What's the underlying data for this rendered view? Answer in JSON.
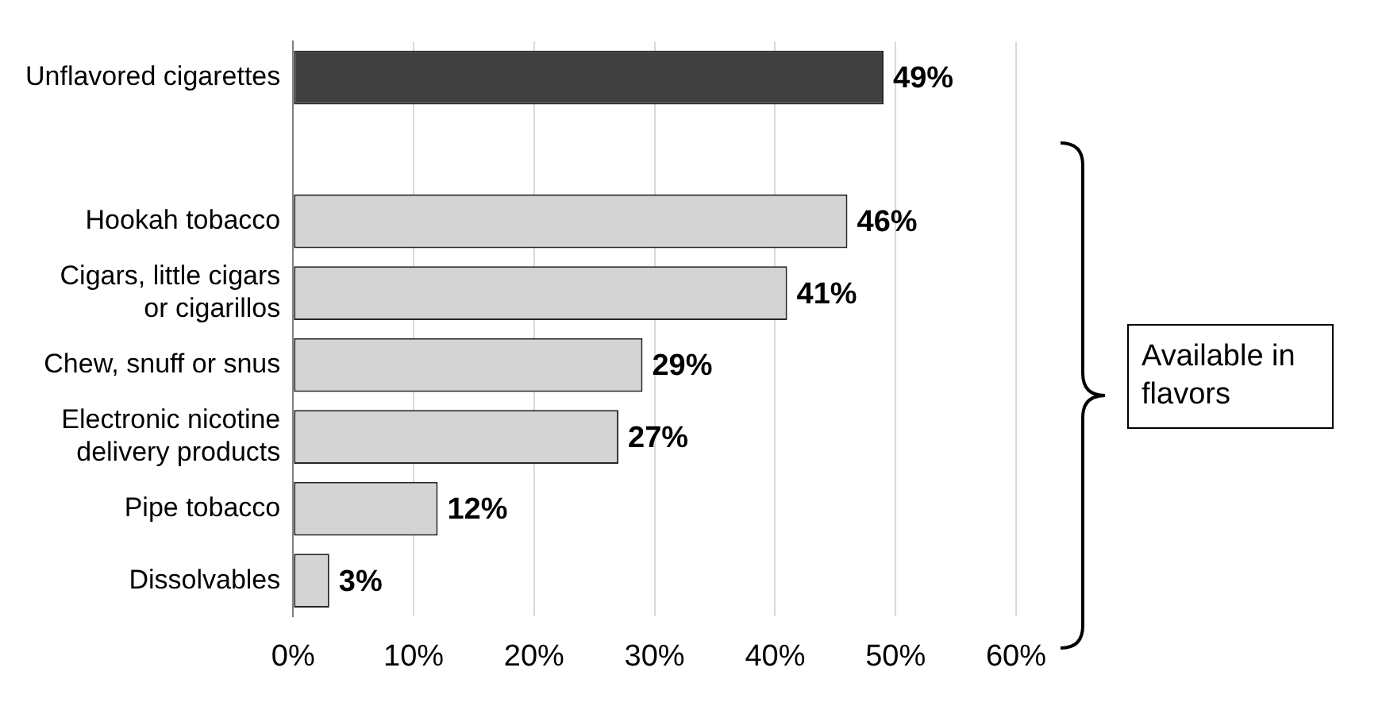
{
  "chart_data": {
    "type": "bar",
    "orientation": "horizontal",
    "categories": [
      "Unflavored cigarettes",
      null,
      "Hookah tobacco",
      "Cigars, little cigars or cigarillos",
      "Chew, snuff or snus",
      "Electronic nicotine delivery products",
      "Pipe tobacco",
      "Dissolvables"
    ],
    "values": [
      49,
      null,
      46,
      41,
      29,
      27,
      12,
      3
    ],
    "value_labels": [
      "49%",
      null,
      "46%",
      "41%",
      "29%",
      "27%",
      "12%",
      "3%"
    ],
    "colors": [
      "#404040",
      null,
      "#d4d4d4",
      "#d4d4d4",
      "#d4d4d4",
      "#d4d4d4",
      "#d4d4d4",
      "#d4d4d4"
    ],
    "xlim": [
      0,
      60
    ],
    "xticks": [
      {
        "value": 0,
        "label": "0%"
      },
      {
        "value": 10,
        "label": "10%"
      },
      {
        "value": 20,
        "label": "20%"
      },
      {
        "value": 30,
        "label": "30%"
      },
      {
        "value": 40,
        "label": "40%"
      },
      {
        "value": 50,
        "label": "50%"
      },
      {
        "value": 60,
        "label": "60%"
      }
    ],
    "grid": "x",
    "annotations": [
      "Available in flavors"
    ]
  }
}
